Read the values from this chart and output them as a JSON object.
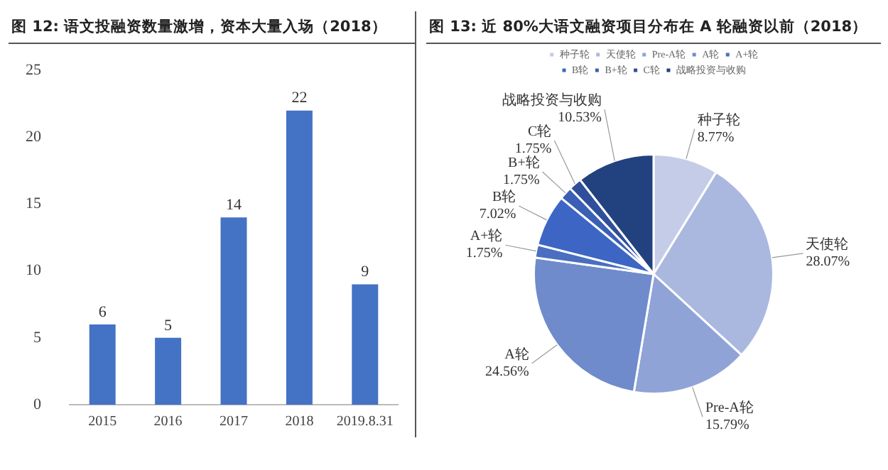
{
  "chart_data": [
    {
      "type": "bar",
      "title": "图 12: 语文投融资数量激增，资本大量入场（2018）",
      "categories": [
        "2015",
        "2016",
        "2017",
        "2018",
        "2019.8.31"
      ],
      "values": [
        6,
        5,
        14,
        22,
        9
      ],
      "color": "#4472c4",
      "ylim": [
        0,
        25
      ],
      "yticks": [
        0,
        5,
        10,
        15,
        20,
        25
      ],
      "grid": false,
      "data_labels": true,
      "legend": false
    },
    {
      "type": "pie",
      "title": "图 13: 近 80%大语文融资项目分布在 A 轮融资以前（2018）",
      "categories": [
        "种子轮",
        "天使轮",
        "Pre-A轮",
        "A轮",
        "A+轮",
        "B轮",
        "B+轮",
        "C轮",
        "战略投资与收购"
      ],
      "values": [
        8.77,
        28.07,
        15.79,
        24.56,
        1.75,
        7.02,
        1.75,
        1.75,
        10.53
      ],
      "value_labels": [
        "8.77%",
        "28.07%",
        "15.79%",
        "24.56%",
        "1.75%",
        "7.02%",
        "1.75%",
        "1.75%",
        "10.53%"
      ],
      "colors": [
        "#c5cce8",
        "#aab8e0",
        "#8fa3d6",
        "#6f8bcc",
        "#4a6fc0",
        "#3d66c4",
        "#3a5fb5",
        "#2f4f9a",
        "#22427f"
      ],
      "legend": "top"
    }
  ]
}
